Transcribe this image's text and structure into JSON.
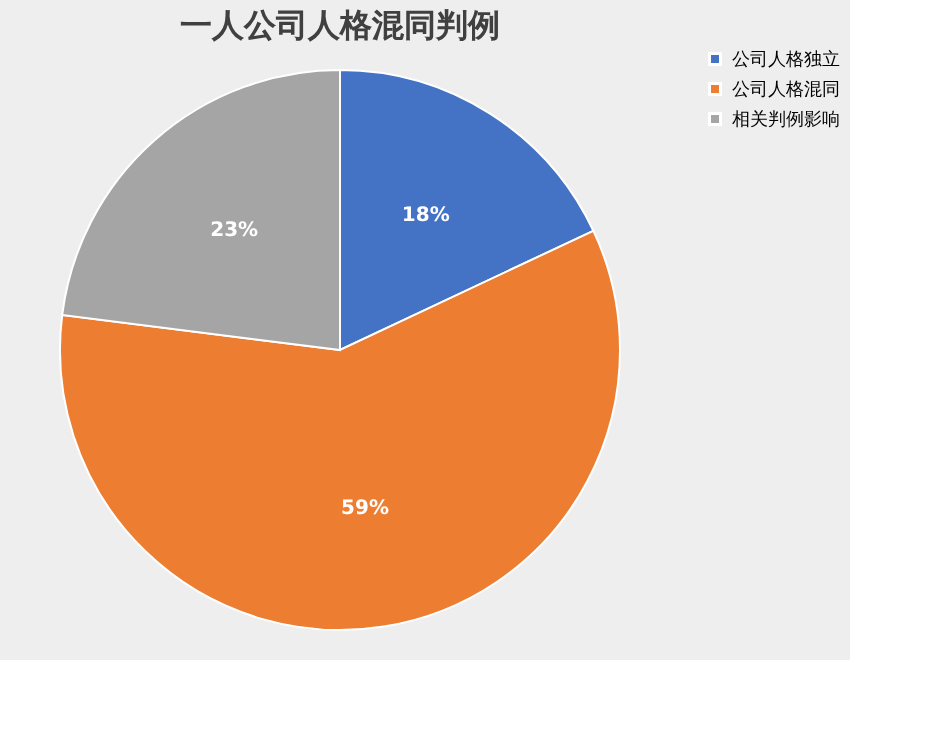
{
  "chart_data": {
    "type": "pie",
    "title": "一人公司人格混同判例",
    "categories": [
      "公司人格独立",
      "公司人格混同",
      "相关判例影响"
    ],
    "values": [
      18,
      59,
      23
    ],
    "colors": [
      "#4472c4",
      "#ed7d31",
      "#a5a5a5"
    ],
    "value_labels": [
      "18%",
      "59%",
      "23%"
    ],
    "legend": "right"
  }
}
